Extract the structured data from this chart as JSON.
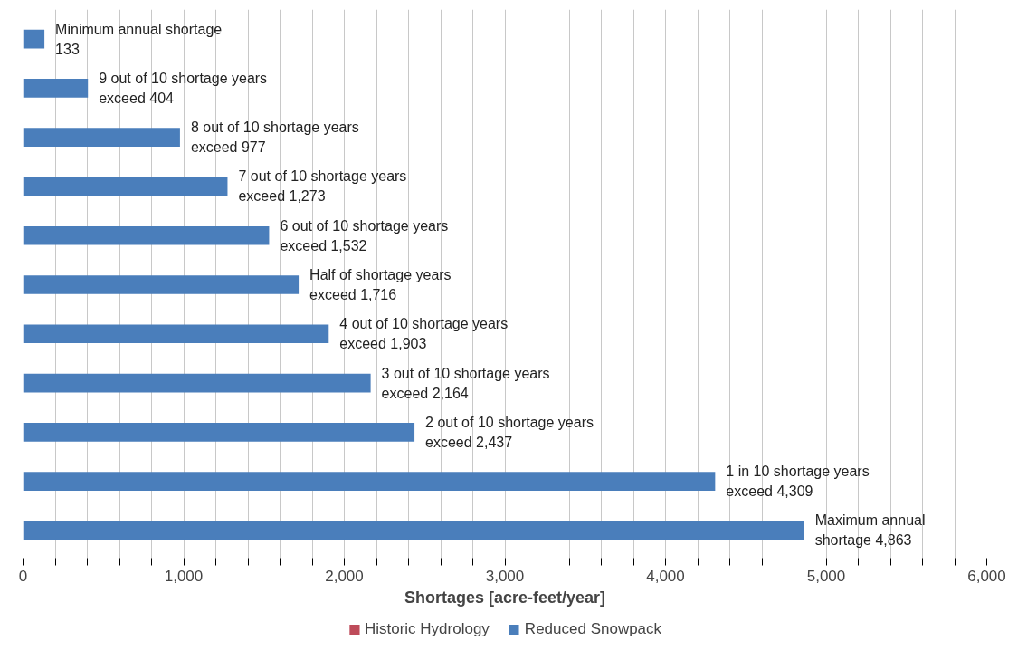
{
  "chart_data": {
    "type": "bar",
    "orientation": "horizontal",
    "xlabel": "Shortages [acre-feet/year]",
    "categories": [
      null,
      null,
      null,
      null,
      null,
      null,
      null,
      null,
      null,
      null,
      null
    ],
    "xlim": [
      0,
      6000
    ],
    "xticks": [
      0,
      {
        "value": 200,
        "label": null
      },
      {
        "value": 400,
        "label": null
      },
      {
        "value": 600,
        "label": null
      },
      {
        "value": 800,
        "label": null
      },
      {
        "value": 1000,
        "label": "1,000"
      },
      {
        "value": 1200,
        "label": null
      },
      {
        "value": 1400,
        "label": null
      },
      {
        "value": 1600,
        "label": null
      },
      {
        "value": 1800,
        "label": null
      },
      {
        "value": 2000,
        "label": "2,000"
      },
      {
        "value": 2200,
        "label": null
      },
      {
        "value": 2400,
        "label": null
      },
      {
        "value": 2600,
        "label": null
      },
      {
        "value": 2800,
        "label": null
      },
      {
        "value": 3000,
        "label": "3,000"
      },
      {
        "value": 3200,
        "label": null
      },
      {
        "value": 3400,
        "label": null
      },
      {
        "value": 3600,
        "label": null
      },
      {
        "value": 3800,
        "label": null
      },
      {
        "value": 4000,
        "label": "4,000"
      },
      {
        "value": 4200,
        "label": null
      },
      {
        "value": 4400,
        "label": null
      },
      {
        "value": 4600,
        "label": null
      },
      {
        "value": 4800,
        "label": null
      },
      {
        "value": 5000,
        "label": "5,000"
      },
      {
        "value": 5200,
        "label": null
      },
      {
        "value": 5400,
        "label": null
      },
      {
        "value": 5600,
        "label": null
      },
      {
        "value": 5800,
        "label": null
      },
      {
        "value": 6000,
        "label": "6,000"
      }
    ],
    "grid": "x",
    "legend": "bottom",
    "tick_labels": "x",
    "series": [
      {
        "name": "Historic Hydrology",
        "color": "#be4b5a",
        "values": [
          null,
          null,
          null,
          null,
          null,
          null,
          null,
          null,
          null,
          null,
          null
        ]
      },
      {
        "name": "Reduced Snowpack",
        "color": "#4a7ebb",
        "values": [
          133,
          404,
          977,
          1273,
          1532,
          1716,
          1903,
          2164,
          2437,
          4309,
          4863
        ],
        "value_labels": [
          "Minimum annual shortage\n133",
          "9 out of 10 shortage years\nexceed  404",
          "8 out of 10 shortage years\nexceed  977",
          "7 out of 10 shortage years\nexceed  1,273",
          "6 out of 10 shortage years\nexceed  1,532",
          "Half of shortage years\nexceed  1,716",
          "4 out of 10 shortage years\nexceed  1,903",
          "3 out of 10 shortage years\nexceed  2,164",
          "2 out of 10 shortage years\nexceed  2,437",
          "1 in 10 shortage years\nexceed  4,309",
          "Maximum annual\nshortage  4,863"
        ]
      }
    ]
  }
}
